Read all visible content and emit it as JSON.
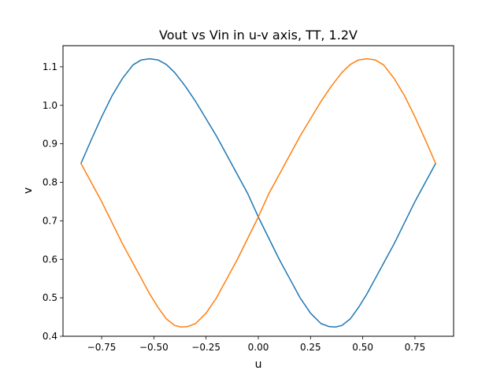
{
  "chart_data": {
    "type": "line",
    "title": "Vout vs Vin in u-v axis, TT, 1.2V",
    "xlabel": "u",
    "ylabel": "v",
    "xlim": [
      -0.935,
      0.935
    ],
    "ylim": [
      0.4,
      1.155
    ],
    "xticks": [
      -0.75,
      -0.5,
      -0.25,
      0.0,
      0.25,
      0.5,
      0.75
    ],
    "xtick_labels": [
      "−0.75",
      "−0.50",
      "−0.25",
      "0.00",
      "0.25",
      "0.50",
      "0.75"
    ],
    "yticks": [
      0.4,
      0.5,
      0.6,
      0.7,
      0.8,
      0.9,
      1.0,
      1.1
    ],
    "ytick_labels": [
      "0.4",
      "0.5",
      "0.6",
      "0.7",
      "0.8",
      "0.9",
      "1.0",
      "1.1"
    ],
    "grid": false,
    "legend": "none",
    "series": [
      {
        "color": "#1f77b4",
        "points": [
          [
            -0.849,
            0.849
          ],
          [
            -0.8,
            0.91
          ],
          [
            -0.75,
            0.97
          ],
          [
            -0.7,
            1.025
          ],
          [
            -0.65,
            1.07
          ],
          [
            -0.6,
            1.105
          ],
          [
            -0.56,
            1.118
          ],
          [
            -0.52,
            1.121
          ],
          [
            -0.48,
            1.118
          ],
          [
            -0.44,
            1.106
          ],
          [
            -0.4,
            1.085
          ],
          [
            -0.35,
            1.05
          ],
          [
            -0.3,
            1.01
          ],
          [
            -0.25,
            0.965
          ],
          [
            -0.2,
            0.92
          ],
          [
            -0.15,
            0.87
          ],
          [
            -0.1,
            0.82
          ],
          [
            -0.05,
            0.77
          ],
          [
            0.0,
            0.71
          ],
          [
            0.05,
            0.655
          ],
          [
            0.1,
            0.6
          ],
          [
            0.15,
            0.55
          ],
          [
            0.2,
            0.5
          ],
          [
            0.25,
            0.46
          ],
          [
            0.3,
            0.433
          ],
          [
            0.34,
            0.425
          ],
          [
            0.37,
            0.424
          ],
          [
            0.4,
            0.428
          ],
          [
            0.44,
            0.445
          ],
          [
            0.48,
            0.475
          ],
          [
            0.52,
            0.51
          ],
          [
            0.56,
            0.55
          ],
          [
            0.6,
            0.59
          ],
          [
            0.65,
            0.64
          ],
          [
            0.7,
            0.695
          ],
          [
            0.75,
            0.75
          ],
          [
            0.8,
            0.8
          ],
          [
            0.849,
            0.849
          ]
        ]
      },
      {
        "color": "#ff7f0e",
        "points": [
          [
            -0.849,
            0.849
          ],
          [
            -0.8,
            0.8
          ],
          [
            -0.75,
            0.75
          ],
          [
            -0.7,
            0.695
          ],
          [
            -0.65,
            0.64
          ],
          [
            -0.6,
            0.59
          ],
          [
            -0.56,
            0.55
          ],
          [
            -0.52,
            0.51
          ],
          [
            -0.48,
            0.475
          ],
          [
            -0.44,
            0.445
          ],
          [
            -0.4,
            0.428
          ],
          [
            -0.37,
            0.424
          ],
          [
            -0.34,
            0.425
          ],
          [
            -0.3,
            0.433
          ],
          [
            -0.25,
            0.46
          ],
          [
            -0.2,
            0.5
          ],
          [
            -0.15,
            0.55
          ],
          [
            -0.1,
            0.6
          ],
          [
            -0.05,
            0.655
          ],
          [
            0.0,
            0.71
          ],
          [
            0.05,
            0.77
          ],
          [
            0.1,
            0.82
          ],
          [
            0.15,
            0.87
          ],
          [
            0.2,
            0.92
          ],
          [
            0.25,
            0.965
          ],
          [
            0.3,
            1.01
          ],
          [
            0.35,
            1.05
          ],
          [
            0.4,
            1.085
          ],
          [
            0.44,
            1.106
          ],
          [
            0.48,
            1.118
          ],
          [
            0.52,
            1.121
          ],
          [
            0.56,
            1.118
          ],
          [
            0.6,
            1.105
          ],
          [
            0.65,
            1.07
          ],
          [
            0.7,
            1.025
          ],
          [
            0.75,
            0.97
          ],
          [
            0.8,
            0.91
          ],
          [
            0.849,
            0.849
          ]
        ]
      }
    ]
  }
}
